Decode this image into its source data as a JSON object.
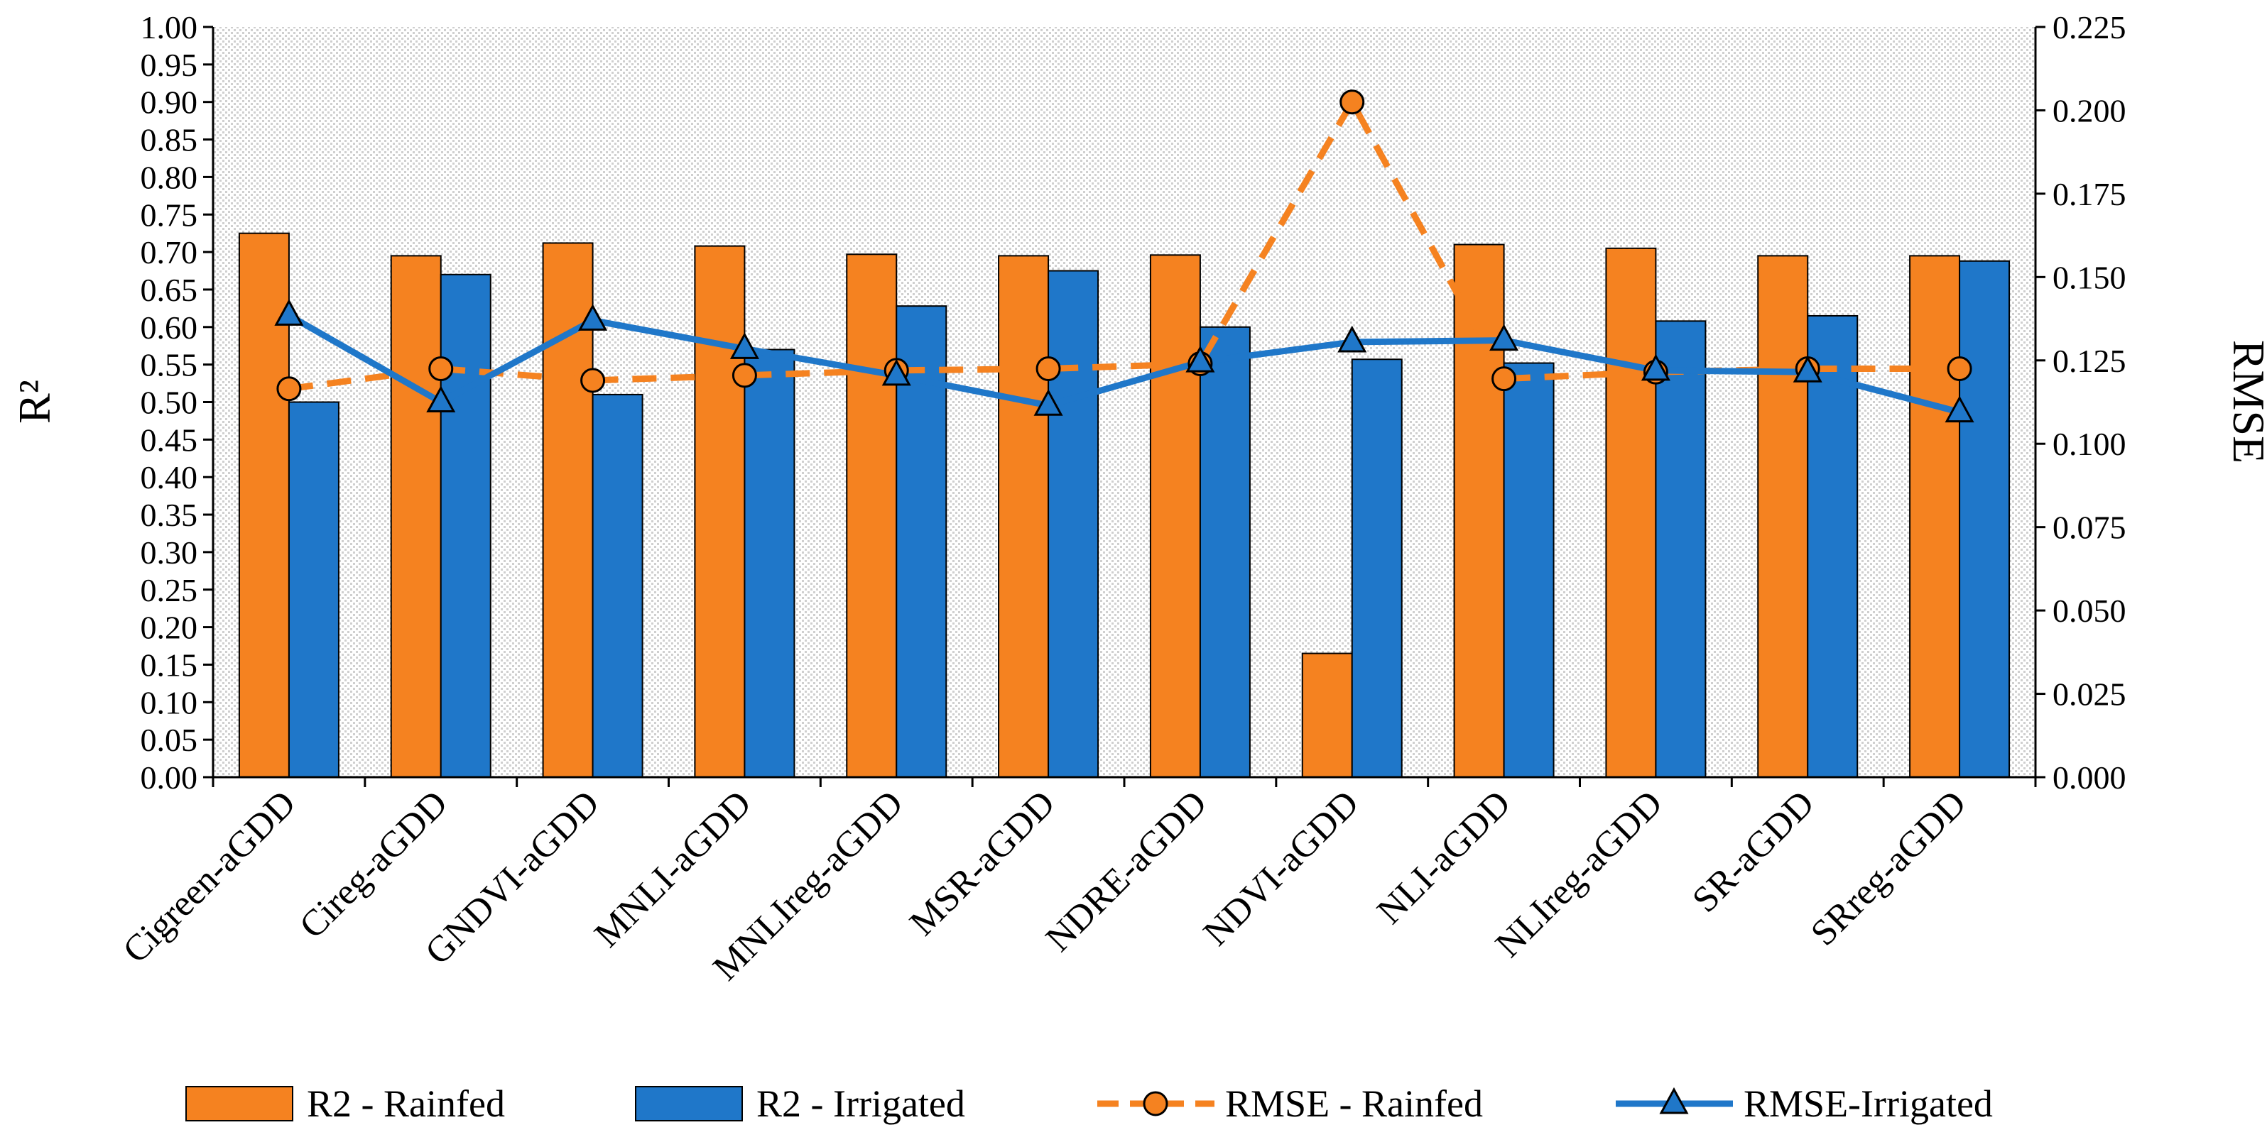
{
  "chart_data": {
    "type": "bar",
    "categories": [
      "Cigreen-aGDD",
      "Cireg-aGDD",
      "GNDVI-aGDD",
      "MNLI-aGDD",
      "MNLIreg-aGDD",
      "MSR-aGDD",
      "NDRE-aGDD",
      "NDVI-aGDD",
      "NLI-aGDD",
      "NLIreg-aGDD",
      "SR-aGDD",
      "SRreg-aGDD"
    ],
    "series": [
      {
        "name": "R2 - Rainfed",
        "type": "bar",
        "axis": "left",
        "color": "#f58220",
        "values": [
          0.725,
          0.695,
          0.712,
          0.708,
          0.697,
          0.695,
          0.696,
          0.165,
          0.71,
          0.705,
          0.695,
          0.695
        ]
      },
      {
        "name": "R2 - Irrigated",
        "type": "bar",
        "axis": "left",
        "color": "#1f77c9",
        "values": [
          0.5,
          0.67,
          0.51,
          0.57,
          0.628,
          0.675,
          0.6,
          0.557,
          0.552,
          0.608,
          0.615,
          0.688
        ]
      },
      {
        "name": "RMSE - Rainfed",
        "type": "line",
        "axis": "right",
        "color": "#f58220",
        "dash": true,
        "marker": "circle",
        "values": [
          0.1165,
          0.1225,
          0.119,
          0.1205,
          0.122,
          0.1225,
          0.124,
          0.2025,
          0.1195,
          0.1215,
          0.1225,
          0.1225
        ]
      },
      {
        "name": "RMSE-Irrigated",
        "type": "line",
        "axis": "right",
        "color": "#1f77c9",
        "dash": false,
        "marker": "triangle",
        "values": [
          0.1385,
          0.1125,
          0.137,
          0.1285,
          0.1205,
          0.1115,
          0.1245,
          0.1305,
          0.131,
          0.122,
          0.1215,
          0.1095
        ]
      }
    ],
    "ylabel": "R²",
    "y2label": "RMSE",
    "ylim": [
      0,
      1.0
    ],
    "y2lim": [
      0,
      0.225
    ],
    "yticks": [
      "0.00",
      "0.05",
      "0.10",
      "0.15",
      "0.20",
      "0.25",
      "0.30",
      "0.35",
      "0.40",
      "0.45",
      "0.50",
      "0.55",
      "0.60",
      "0.65",
      "0.70",
      "0.75",
      "0.80",
      "0.85",
      "0.90",
      "0.95",
      "1.00"
    ],
    "y2ticks": [
      "0.000",
      "0.025",
      "0.050",
      "0.075",
      "0.100",
      "0.125",
      "0.150",
      "0.175",
      "0.200",
      "0.225"
    ],
    "legend_position": "bottom",
    "background": "dotted grey pattern"
  }
}
